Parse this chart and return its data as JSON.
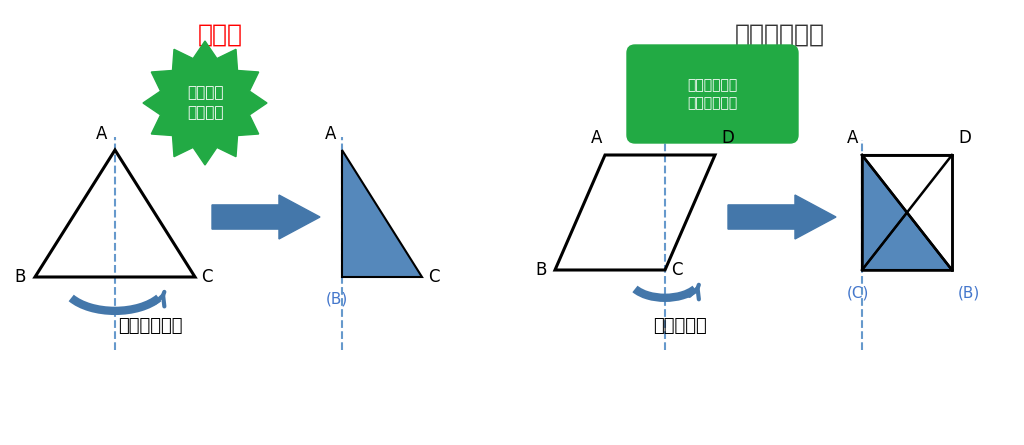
{
  "bg_color": "#ffffff",
  "title_left": "線対称",
  "title_right": "線対称でない",
  "title_left_color": "#ff0000",
  "title_right_color": "#333333",
  "green_color": "#22aa44",
  "blue_shape_color": "#5588bb",
  "blue_arrow_color": "#4477aa",
  "dashed_line_color": "#6699cc",
  "label_color_black": "#222222",
  "label_color_blue": "#4477cc",
  "bubble_text1": "ピッタリ\n重なる！",
  "bubble_text2": "ピッタリ重な\nらない・・・",
  "subtitle_left": "二等辺三角形",
  "subtitle_right": "平行四辺形"
}
